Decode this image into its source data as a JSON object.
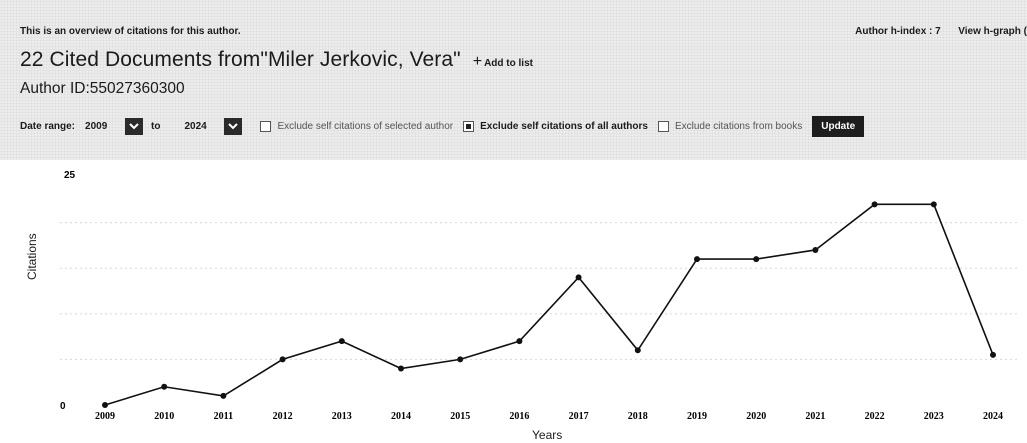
{
  "header": {
    "intro": "This is an overview of citations for this author.",
    "hindex_label": "Author h-index : 7",
    "view_hgraph": "View h-graph (",
    "title": "22 Cited Documents from\"Miler Jerkovic, Vera\"",
    "add_to_list": "Add to list",
    "author_id": "Author ID:55027360300"
  },
  "controls": {
    "date_range_label": "Date range:",
    "from_year": "2009",
    "to_label": "to",
    "to_year": "2024",
    "options": [
      {
        "label": "Exclude self citations of selected author",
        "checked": false
      },
      {
        "label": "Exclude self citations of all authors",
        "checked": true
      },
      {
        "label": "Exclude citations from books",
        "checked": false
      }
    ],
    "update_label": "Update"
  },
  "chart_data": {
    "type": "line",
    "x": [
      "2009",
      "2010",
      "2011",
      "2012",
      "2013",
      "2014",
      "2015",
      "2016",
      "2017",
      "2018",
      "2019",
      "2020",
      "2021",
      "2022",
      "2023",
      "2024"
    ],
    "series": [
      {
        "values": [
          0,
          2,
          1,
          5,
          7,
          4,
          5,
          7,
          14,
          6,
          16,
          16,
          17,
          22,
          22,
          5.5
        ]
      }
    ],
    "xlabel": "Years",
    "ylabel": "Citations",
    "yticks": [
      "0",
      "25"
    ],
    "ylim": [
      0,
      25
    ],
    "grid": true,
    "line_color": "#111111"
  }
}
